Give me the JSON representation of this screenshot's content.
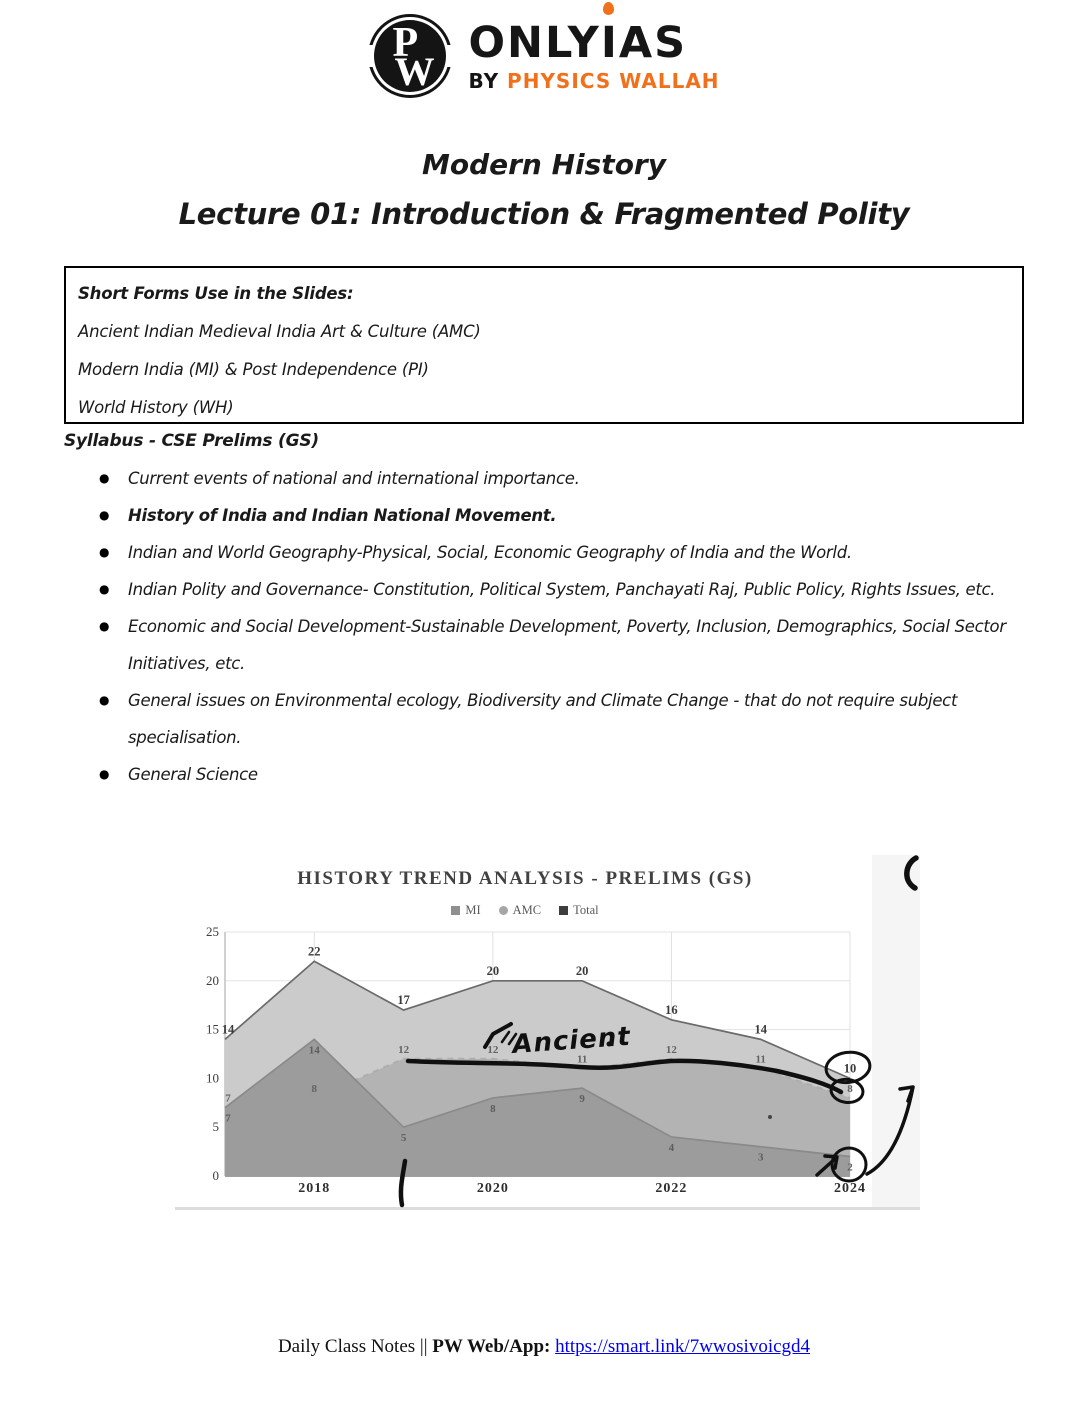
{
  "header": {
    "logo": {
      "monogram": "PW",
      "monogram_p": "P",
      "monogram_w": "W",
      "brand_left": "ONLY",
      "brand_i": "I",
      "brand_right": "AS",
      "by": "BY",
      "physics_wallah": "PHYSICS WALLAH",
      "accent_orange": "#f0701c"
    }
  },
  "titles": {
    "course": "Modern History",
    "lecture": "Lecture 01: Introduction & Fragmented Polity"
  },
  "short_forms_box": {
    "heading": "Short Forms Use in the Slides:",
    "lines": [
      "Ancient Indian Medieval India Art & Culture (AMC)",
      "Modern India (MI) & Post Independence (PI)",
      "World History (WH)"
    ]
  },
  "syllabus": {
    "heading": "Syllabus - CSE Prelims (GS)",
    "items": [
      {
        "text": "Current events of national and international importance.",
        "bold": false
      },
      {
        "text": "History of India and Indian National Movement.",
        "bold": true
      },
      {
        "text": "Indian and World Geography-Physical, Social, Economic Geography of India and the World.",
        "bold": false
      },
      {
        "text": "Indian Polity and Governance- Constitution, Political System, Panchayati Raj, Public Policy, Rights Issues, etc.",
        "bold": false
      },
      {
        "text": "Economic and Social Development-Sustainable Development, Poverty, Inclusion, Demographics, Social Sector Initiatives, etc.",
        "bold": false
      },
      {
        "text": "General issues on Environmental ecology, Biodiversity and Climate Change - that do not require subject specialisation.",
        "bold": false
      },
      {
        "text": "General Science",
        "bold": false
      }
    ]
  },
  "chart_data": {
    "type": "area",
    "title": "HISTORY TREND ANALYSIS - PRELIMS (GS)",
    "x": [
      2017,
      2018,
      2019,
      2020,
      2021,
      2022,
      2023,
      2024
    ],
    "x_ticks": [
      2018,
      2020,
      2022,
      2024
    ],
    "y_ticks": [
      0,
      5,
      10,
      15,
      20,
      25
    ],
    "ylim": [
      0,
      25
    ],
    "grid": true,
    "legend_position": "top",
    "legend": [
      {
        "label": "MI",
        "marker": "square",
        "color": "#8f8f8f"
      },
      {
        "label": "AMC",
        "marker": "circle",
        "color": "#a6a6a6"
      },
      {
        "label": "Total",
        "marker": "square",
        "color": "#3d3d3d"
      }
    ],
    "series": [
      {
        "name": "Total",
        "values": [
          14,
          22,
          17,
          20,
          20,
          16,
          14,
          10
        ],
        "fill": "#cbcbcb",
        "line": "#6a6a6a",
        "dashed": false
      },
      {
        "name": "AMC",
        "values": [
          7,
          8,
          12,
          12,
          11,
          12,
          11,
          8
        ],
        "fill": "#b3b3b3",
        "line": "#aeaeae",
        "dashed": true
      },
      {
        "name": "MI",
        "values": [
          7,
          14,
          5,
          8,
          9,
          4,
          3,
          2
        ],
        "fill": "#9c9c9c",
        "line": "#8a8a8a",
        "dashed": false
      }
    ],
    "annotations": {
      "handwritten_word": "Ancient",
      "circled_values": [
        10,
        8,
        2
      ],
      "ink_color": "#101010"
    }
  },
  "footer": {
    "prefix": "Daily Class Notes || ",
    "label_bold": "PW Web/App: ",
    "link": "https://smart.link/7wwosivoicgd4"
  }
}
